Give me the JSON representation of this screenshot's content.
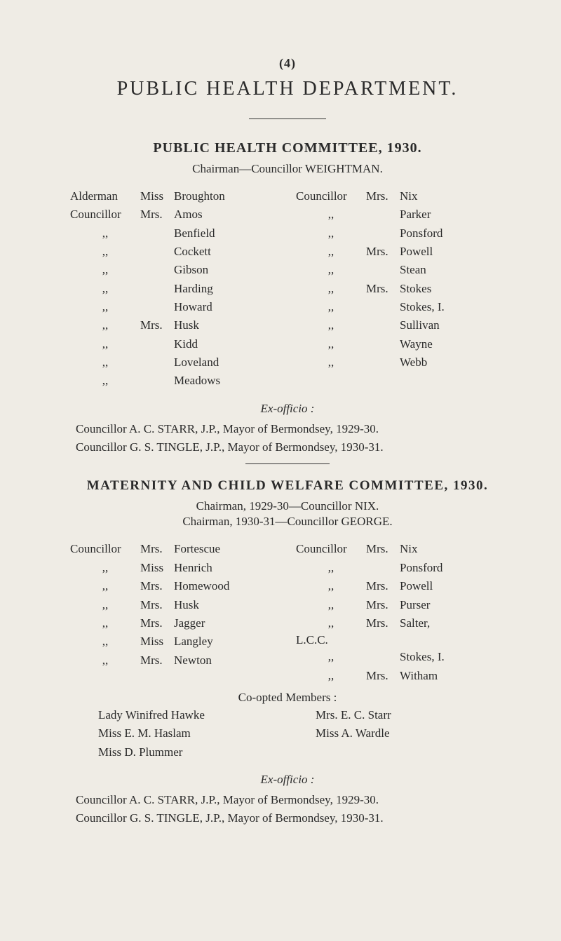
{
  "page_number": "(4)",
  "department_title": "PUBLIC  HEALTH  DEPARTMENT.",
  "colors": {
    "background": "#efece5",
    "text": "#2a2a2a",
    "rule": "#333333"
  },
  "typography": {
    "body_fontsize_pt": 12,
    "title_fontsize_pt": 20,
    "font_family": "Times New Roman"
  },
  "committee1": {
    "title": "PUBLIC HEALTH COMMITTEE, 1930.",
    "chairman": "Chairman—Councillor WEIGHTMAN.",
    "left": [
      {
        "role": "Alderman",
        "honor": "Miss",
        "name": "Broughton"
      },
      {
        "role": "Councillor",
        "honor": "Mrs.",
        "name": "Amos"
      },
      {
        "role": ",,",
        "honor": "",
        "name": "Benfield"
      },
      {
        "role": ",,",
        "honor": "",
        "name": "Cockett"
      },
      {
        "role": ",,",
        "honor": "",
        "name": "Gibson"
      },
      {
        "role": ",,",
        "honor": "",
        "name": "Harding"
      },
      {
        "role": ",,",
        "honor": "",
        "name": "Howard"
      },
      {
        "role": ",,",
        "honor": "Mrs.",
        "name": "Husk"
      },
      {
        "role": ",,",
        "honor": "",
        "name": "Kidd"
      },
      {
        "role": ",,",
        "honor": "",
        "name": "Loveland"
      },
      {
        "role": ",,",
        "honor": "",
        "name": "Meadows"
      }
    ],
    "right": [
      {
        "role": "Councillor",
        "honor": "Mrs.",
        "name": "Nix"
      },
      {
        "role": ",,",
        "honor": "",
        "name": "Parker"
      },
      {
        "role": ",,",
        "honor": "",
        "name": "Ponsford"
      },
      {
        "role": ",,",
        "honor": "Mrs.",
        "name": "Powell"
      },
      {
        "role": ",,",
        "honor": "",
        "name": "Stean"
      },
      {
        "role": ",,",
        "honor": "Mrs.",
        "name": "Stokes"
      },
      {
        "role": ",,",
        "honor": "",
        "name": "Stokes, I."
      },
      {
        "role": ",,",
        "honor": "",
        "name": "Sullivan"
      },
      {
        "role": ",,",
        "honor": "",
        "name": "Wayne"
      },
      {
        "role": ",,",
        "honor": "",
        "name": "Webb"
      }
    ],
    "exofficio_label": "Ex-officio :",
    "exofficio_lines": [
      "Councillor A. C. STARR, J.P., Mayor of Bermondsey, 1929-30.",
      "Councillor G. S. TINGLE, J.P., Mayor of Bermondsey, 1930-31."
    ]
  },
  "committee2": {
    "title": "MATERNITY  AND  CHILD  WELFARE  COMMITTEE,  1930.",
    "chairman1": "Chairman, 1929-30—Councillor NIX.",
    "chairman2": "Chairman, 1930-31—Councillor GEORGE.",
    "left": [
      {
        "role": "Councillor",
        "honor": "Mrs.",
        "name": "Fortescue"
      },
      {
        "role": ",,",
        "honor": "Miss",
        "name": "Henrich"
      },
      {
        "role": ",,",
        "honor": "Mrs.",
        "name": "Homewood"
      },
      {
        "role": ",,",
        "honor": "Mrs.",
        "name": "Husk"
      },
      {
        "role": ",,",
        "honor": "Mrs.",
        "name": "Jagger"
      },
      {
        "role": "",
        "honor": "",
        "name": ""
      },
      {
        "role": ",,",
        "honor": "Miss",
        "name": "Langley"
      },
      {
        "role": ",,",
        "honor": "Mrs.",
        "name": "Newton"
      }
    ],
    "right": [
      {
        "role": "Councillor",
        "honor": "Mrs.",
        "name": "Nix"
      },
      {
        "role": ",,",
        "honor": "",
        "name": "Ponsford"
      },
      {
        "role": ",,",
        "honor": "Mrs.",
        "name": "Powell"
      },
      {
        "role": ",,",
        "honor": "Mrs.",
        "name": "Purser"
      },
      {
        "role": ",,",
        "honor": "Mrs.",
        "name": "Salter,"
      },
      {
        "role": "",
        "honor": "",
        "name": "L.C.C.",
        "lcc": true
      },
      {
        "role": ",,",
        "honor": "",
        "name": "Stokes, I."
      },
      {
        "role": ",,",
        "honor": "Mrs.",
        "name": "Witham"
      }
    ],
    "coopted_title": "Co-opted Members :",
    "coopted_left": [
      "Lady Winifred Hawke",
      "Miss E. M. Haslam",
      "Miss D. Plummer"
    ],
    "coopted_right": [
      "Mrs. E. C. Starr",
      "Miss A. Wardle"
    ],
    "exofficio_label": "Ex-officio :",
    "exofficio_lines": [
      "Councillor A. C. STARR, J.P., Mayor of Bermondsey, 1929-30.",
      "Councillor G. S. TINGLE, J.P., Mayor of Bermondsey, 1930-31."
    ]
  }
}
